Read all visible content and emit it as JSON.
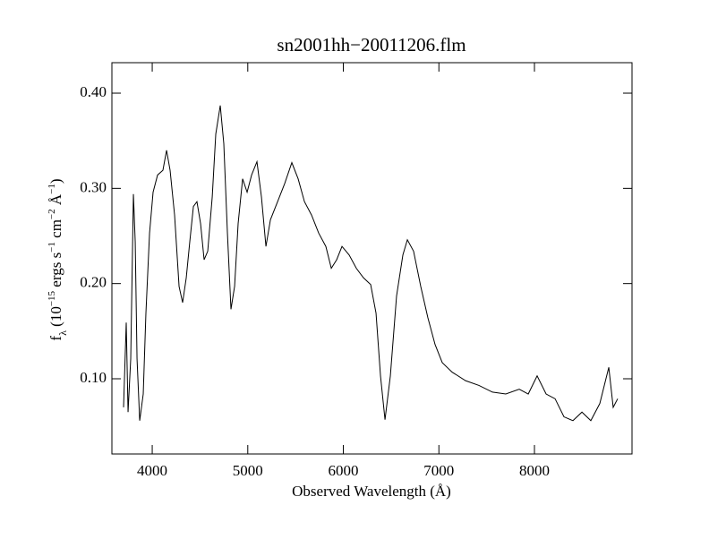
{
  "chart_data": {
    "type": "line",
    "title": "sn2001hh−20011206.flm",
    "xlabel": "Observed Wavelength (Å)",
    "ylabel": [
      {
        "text": "f"
      },
      {
        "text": "λ",
        "shift": "sub"
      },
      {
        "text": " (10"
      },
      {
        "text": "−15",
        "shift": "super"
      },
      {
        "text": " ergs s"
      },
      {
        "text": "−1",
        "shift": "super"
      },
      {
        "text": " cm"
      },
      {
        "text": "−2",
        "shift": "super"
      },
      {
        "text": " Å"
      },
      {
        "text": "−1",
        "shift": "super"
      },
      {
        "text": ")"
      }
    ],
    "color": "#000000",
    "xlim": [
      3578,
      9021
    ],
    "ylim": [
      0.021,
      0.432
    ],
    "xticks": [
      4000,
      5000,
      6000,
      7000,
      8000
    ],
    "yticks": [
      {
        "value": 0.1,
        "label": "0.10"
      },
      {
        "value": 0.2,
        "label": "0.20"
      },
      {
        "value": 0.3,
        "label": "0.30"
      },
      {
        "value": 0.4,
        "label": "0.40"
      }
    ],
    "x": [
      3700,
      3728,
      3747,
      3775,
      3803,
      3822,
      3841,
      3869,
      3906,
      3934,
      3972,
      4009,
      4056,
      4112,
      4150,
      4187,
      4234,
      4281,
      4318,
      4356,
      4393,
      4431,
      4468,
      4506,
      4543,
      4581,
      4628,
      4665,
      4712,
      4749,
      4787,
      4824,
      4862,
      4899,
      4946,
      4993,
      5040,
      5096,
      5143,
      5190,
      5237,
      5312,
      5386,
      5461,
      5527,
      5593,
      5667,
      5742,
      5817,
      5874,
      5930,
      5986,
      6061,
      6136,
      6211,
      6286,
      6342,
      6389,
      6436,
      6492,
      6557,
      6623,
      6670,
      6735,
      6810,
      6885,
      6960,
      7035,
      7138,
      7279,
      7419,
      7560,
      7700,
      7841,
      7935,
      8028,
      8122,
      8216,
      8309,
      8403,
      8497,
      8590,
      8684,
      8778,
      8824,
      8871
    ],
    "values": [
      0.07,
      0.159,
      0.065,
      0.121,
      0.294,
      0.244,
      0.121,
      0.056,
      0.084,
      0.169,
      0.253,
      0.296,
      0.314,
      0.319,
      0.34,
      0.319,
      0.272,
      0.197,
      0.18,
      0.206,
      0.244,
      0.281,
      0.286,
      0.263,
      0.225,
      0.234,
      0.291,
      0.357,
      0.387,
      0.347,
      0.253,
      0.173,
      0.197,
      0.263,
      0.31,
      0.296,
      0.314,
      0.328,
      0.291,
      0.239,
      0.267,
      0.286,
      0.305,
      0.327,
      0.31,
      0.286,
      0.272,
      0.253,
      0.239,
      0.216,
      0.225,
      0.239,
      0.23,
      0.216,
      0.206,
      0.199,
      0.169,
      0.103,
      0.057,
      0.103,
      0.187,
      0.23,
      0.246,
      0.234,
      0.197,
      0.164,
      0.136,
      0.117,
      0.107,
      0.098,
      0.093,
      0.086,
      0.084,
      0.089,
      0.084,
      0.103,
      0.084,
      0.079,
      0.06,
      0.056,
      0.065,
      0.056,
      0.074,
      0.112,
      0.07,
      0.079
    ]
  }
}
